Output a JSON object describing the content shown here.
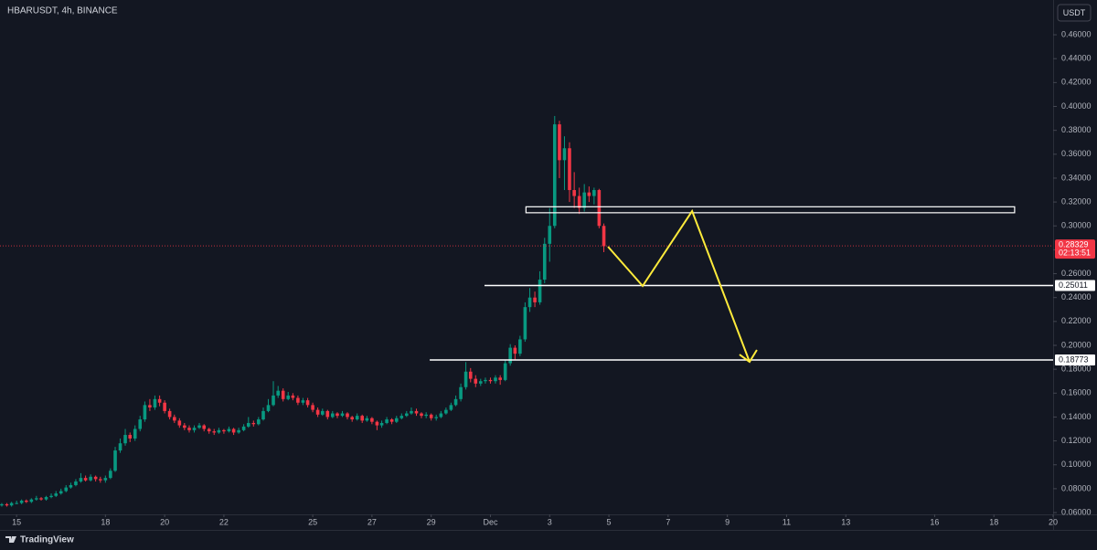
{
  "chart_data": {
    "type": "candlestick",
    "title": "HBARUSDT, 4h, BINANCE",
    "currency": "USDT",
    "up_color": "#089981",
    "down_color": "#f23645",
    "x": [
      -0.5,
      -0.33,
      -0.17,
      0,
      0.17,
      0.33,
      0.5,
      0.67,
      0.83,
      1,
      1.17,
      1.33,
      1.5,
      1.67,
      1.83,
      2,
      2.17,
      2.33,
      2.5,
      2.67,
      2.83,
      3,
      3.17,
      3.33,
      3.5,
      3.67,
      3.83,
      4,
      4.17,
      4.33,
      4.5,
      4.67,
      4.83,
      5,
      5.17,
      5.33,
      5.5,
      5.67,
      5.83,
      6,
      6.17,
      6.33,
      6.5,
      6.67,
      6.83,
      7,
      7.17,
      7.33,
      7.5,
      7.67,
      7.83,
      8,
      8.17,
      8.33,
      8.5,
      8.67,
      8.83,
      9,
      9.17,
      9.33,
      9.5,
      9.67,
      9.83,
      10,
      10.17,
      10.33,
      10.5,
      10.67,
      10.83,
      11,
      11.17,
      11.33,
      11.5,
      11.67,
      11.83,
      12,
      12.17,
      12.33,
      12.5,
      12.67,
      12.83,
      13,
      13.17,
      13.33,
      13.5,
      13.67,
      13.83,
      14,
      14.17,
      14.33,
      14.5,
      14.67,
      14.83,
      15,
      15.17,
      15.33,
      15.5,
      15.67,
      15.83,
      16,
      16.17,
      16.33,
      16.5,
      16.67,
      16.83,
      17,
      17.17,
      17.33,
      17.5,
      17.67,
      17.83,
      18,
      18.17,
      18.33,
      18.5,
      18.67,
      18.83,
      19,
      19.17,
      19.33,
      19.5,
      19.67,
      19.83
    ],
    "candles": [
      [
        0.066,
        0.068,
        0.065,
        0.067
      ],
      [
        0.067,
        0.068,
        0.065,
        0.066
      ],
      [
        0.066,
        0.069,
        0.065,
        0.068
      ],
      [
        0.068,
        0.07,
        0.067,
        0.068
      ],
      [
        0.068,
        0.071,
        0.067,
        0.07
      ],
      [
        0.07,
        0.071,
        0.068,
        0.069
      ],
      [
        0.069,
        0.072,
        0.068,
        0.071
      ],
      [
        0.071,
        0.074,
        0.07,
        0.072
      ],
      [
        0.072,
        0.073,
        0.07,
        0.071
      ],
      [
        0.071,
        0.074,
        0.07,
        0.073
      ],
      [
        0.073,
        0.076,
        0.072,
        0.074
      ],
      [
        0.074,
        0.078,
        0.073,
        0.076
      ],
      [
        0.076,
        0.08,
        0.075,
        0.078
      ],
      [
        0.078,
        0.083,
        0.077,
        0.081
      ],
      [
        0.081,
        0.085,
        0.08,
        0.083
      ],
      [
        0.083,
        0.088,
        0.082,
        0.086
      ],
      [
        0.086,
        0.093,
        0.085,
        0.089
      ],
      [
        0.089,
        0.091,
        0.086,
        0.087
      ],
      [
        0.087,
        0.092,
        0.086,
        0.09
      ],
      [
        0.09,
        0.091,
        0.086,
        0.088
      ],
      [
        0.088,
        0.09,
        0.085,
        0.087
      ],
      [
        0.087,
        0.091,
        0.085,
        0.089
      ],
      [
        0.089,
        0.097,
        0.088,
        0.095
      ],
      [
        0.095,
        0.115,
        0.094,
        0.112
      ],
      [
        0.112,
        0.122,
        0.11,
        0.118
      ],
      [
        0.118,
        0.13,
        0.116,
        0.125
      ],
      [
        0.125,
        0.127,
        0.119,
        0.122
      ],
      [
        0.122,
        0.133,
        0.12,
        0.13
      ],
      [
        0.13,
        0.141,
        0.128,
        0.138
      ],
      [
        0.138,
        0.153,
        0.136,
        0.15
      ],
      [
        0.15,
        0.155,
        0.145,
        0.148
      ],
      [
        0.148,
        0.158,
        0.146,
        0.155
      ],
      [
        0.155,
        0.158,
        0.149,
        0.152
      ],
      [
        0.152,
        0.154,
        0.143,
        0.145
      ],
      [
        0.145,
        0.147,
        0.138,
        0.14
      ],
      [
        0.14,
        0.142,
        0.135,
        0.137
      ],
      [
        0.137,
        0.139,
        0.131,
        0.133
      ],
      [
        0.133,
        0.135,
        0.129,
        0.131
      ],
      [
        0.131,
        0.133,
        0.127,
        0.129
      ],
      [
        0.129,
        0.133,
        0.127,
        0.131
      ],
      [
        0.131,
        0.135,
        0.13,
        0.133
      ],
      [
        0.133,
        0.134,
        0.128,
        0.13
      ],
      [
        0.13,
        0.131,
        0.126,
        0.128
      ],
      [
        0.128,
        0.13,
        0.125,
        0.127
      ],
      [
        0.127,
        0.131,
        0.126,
        0.129
      ],
      [
        0.129,
        0.13,
        0.126,
        0.128
      ],
      [
        0.128,
        0.132,
        0.127,
        0.13
      ],
      [
        0.13,
        0.131,
        0.125,
        0.127
      ],
      [
        0.127,
        0.131,
        0.126,
        0.129
      ],
      [
        0.129,
        0.134,
        0.128,
        0.132
      ],
      [
        0.132,
        0.14,
        0.131,
        0.135
      ],
      [
        0.135,
        0.137,
        0.132,
        0.134
      ],
      [
        0.134,
        0.14,
        0.133,
        0.138
      ],
      [
        0.138,
        0.148,
        0.137,
        0.145
      ],
      [
        0.145,
        0.155,
        0.144,
        0.15
      ],
      [
        0.15,
        0.17,
        0.149,
        0.158
      ],
      [
        0.158,
        0.166,
        0.156,
        0.162
      ],
      [
        0.162,
        0.164,
        0.153,
        0.155
      ],
      [
        0.155,
        0.161,
        0.154,
        0.158
      ],
      [
        0.158,
        0.16,
        0.154,
        0.156
      ],
      [
        0.156,
        0.158,
        0.15,
        0.152
      ],
      [
        0.152,
        0.156,
        0.15,
        0.154
      ],
      [
        0.154,
        0.156,
        0.148,
        0.15
      ],
      [
        0.15,
        0.152,
        0.144,
        0.146
      ],
      [
        0.146,
        0.148,
        0.14,
        0.142
      ],
      [
        0.142,
        0.147,
        0.141,
        0.145
      ],
      [
        0.145,
        0.146,
        0.138,
        0.14
      ],
      [
        0.14,
        0.145,
        0.139,
        0.143
      ],
      [
        0.143,
        0.144,
        0.139,
        0.141
      ],
      [
        0.141,
        0.145,
        0.14,
        0.143
      ],
      [
        0.143,
        0.144,
        0.138,
        0.14
      ],
      [
        0.14,
        0.141,
        0.136,
        0.138
      ],
      [
        0.138,
        0.143,
        0.137,
        0.141
      ],
      [
        0.141,
        0.142,
        0.135,
        0.137
      ],
      [
        0.137,
        0.141,
        0.136,
        0.139
      ],
      [
        0.139,
        0.14,
        0.134,
        0.136
      ],
      [
        0.136,
        0.137,
        0.129,
        0.133
      ],
      [
        0.133,
        0.137,
        0.131,
        0.135
      ],
      [
        0.135,
        0.14,
        0.134,
        0.138
      ],
      [
        0.138,
        0.139,
        0.134,
        0.136
      ],
      [
        0.136,
        0.141,
        0.135,
        0.139
      ],
      [
        0.139,
        0.143,
        0.138,
        0.141
      ],
      [
        0.141,
        0.145,
        0.14,
        0.143
      ],
      [
        0.143,
        0.148,
        0.142,
        0.145
      ],
      [
        0.145,
        0.147,
        0.141,
        0.143
      ],
      [
        0.143,
        0.144,
        0.139,
        0.141
      ],
      [
        0.141,
        0.144,
        0.139,
        0.142
      ],
      [
        0.142,
        0.143,
        0.137,
        0.139
      ],
      [
        0.139,
        0.142,
        0.137,
        0.14
      ],
      [
        0.14,
        0.145,
        0.139,
        0.143
      ],
      [
        0.143,
        0.148,
        0.142,
        0.146
      ],
      [
        0.146,
        0.152,
        0.145,
        0.15
      ],
      [
        0.15,
        0.158,
        0.149,
        0.155
      ],
      [
        0.155,
        0.168,
        0.153,
        0.165
      ],
      [
        0.165,
        0.186,
        0.163,
        0.178
      ],
      [
        0.178,
        0.181,
        0.169,
        0.172
      ],
      [
        0.172,
        0.175,
        0.165,
        0.168
      ],
      [
        0.168,
        0.172,
        0.166,
        0.17
      ],
      [
        0.17,
        0.173,
        0.168,
        0.171
      ],
      [
        0.171,
        0.173,
        0.168,
        0.17
      ],
      [
        0.17,
        0.175,
        0.168,
        0.173
      ],
      [
        0.173,
        0.175,
        0.167,
        0.171
      ],
      [
        0.171,
        0.188,
        0.17,
        0.185
      ],
      [
        0.185,
        0.201,
        0.183,
        0.198
      ],
      [
        0.198,
        0.2,
        0.188,
        0.193
      ],
      [
        0.193,
        0.208,
        0.191,
        0.205
      ],
      [
        0.205,
        0.236,
        0.203,
        0.232
      ],
      [
        0.232,
        0.248,
        0.228,
        0.24
      ],
      [
        0.24,
        0.245,
        0.232,
        0.236
      ],
      [
        0.236,
        0.262,
        0.234,
        0.255
      ],
      [
        0.255,
        0.29,
        0.252,
        0.285
      ],
      [
        0.285,
        0.315,
        0.27,
        0.3
      ],
      [
        0.3,
        0.392,
        0.298,
        0.385
      ],
      [
        0.385,
        0.388,
        0.34,
        0.355
      ],
      [
        0.355,
        0.375,
        0.33,
        0.365
      ],
      [
        0.365,
        0.37,
        0.32,
        0.33
      ],
      [
        0.33,
        0.345,
        0.315,
        0.325
      ],
      [
        0.325,
        0.332,
        0.31,
        0.315
      ],
      [
        0.315,
        0.335,
        0.312,
        0.328
      ],
      [
        0.328,
        0.333,
        0.32,
        0.325
      ],
      [
        0.325,
        0.332,
        0.318,
        0.33
      ],
      [
        0.33,
        0.331,
        0.298,
        0.3
      ],
      [
        0.3,
        0.302,
        0.278,
        0.283
      ]
    ],
    "xlim": [
      -0.56,
      35
    ],
    "xticks": [
      {
        "value": 0,
        "label": "15"
      },
      {
        "value": 3,
        "label": "18"
      },
      {
        "value": 5,
        "label": "20"
      },
      {
        "value": 7,
        "label": "22"
      },
      {
        "value": 10,
        "label": "25"
      },
      {
        "value": 12,
        "label": "27"
      },
      {
        "value": 14,
        "label": "29"
      },
      {
        "value": 16,
        "label": "Dec"
      },
      {
        "value": 18,
        "label": "3"
      },
      {
        "value": 20,
        "label": "5"
      },
      {
        "value": 22,
        "label": "7"
      },
      {
        "value": 24,
        "label": "9"
      },
      {
        "value": 26,
        "label": "11"
      },
      {
        "value": 28,
        "label": "13"
      },
      {
        "value": 31,
        "label": "16"
      },
      {
        "value": 33,
        "label": "18"
      },
      {
        "value": 35,
        "label": "20"
      }
    ],
    "ylim": [
      0.0585,
      0.4891
    ],
    "yticks": [
      {
        "value": 0.06,
        "label": "0.06000"
      },
      {
        "value": 0.08,
        "label": "0.08000"
      },
      {
        "value": 0.1,
        "label": "0.10000"
      },
      {
        "value": 0.12,
        "label": "0.12000"
      },
      {
        "value": 0.14,
        "label": "0.14000"
      },
      {
        "value": 0.16,
        "label": "0.16000"
      },
      {
        "value": 0.18,
        "label": "0.18000"
      },
      {
        "value": 0.2,
        "label": "0.20000"
      },
      {
        "value": 0.22,
        "label": "0.22000"
      },
      {
        "value": 0.24,
        "label": "0.24000"
      },
      {
        "value": 0.26,
        "label": "0.26000"
      },
      {
        "value": 0.28,
        "label": "0.28000"
      },
      {
        "value": 0.3,
        "label": "0.30000"
      },
      {
        "value": 0.32,
        "label": "0.32000"
      },
      {
        "value": 0.34,
        "label": "0.34000"
      },
      {
        "value": 0.36,
        "label": "0.36000"
      },
      {
        "value": 0.38,
        "label": "0.38000"
      },
      {
        "value": 0.4,
        "label": "0.40000"
      },
      {
        "value": 0.42,
        "label": "0.42000"
      },
      {
        "value": 0.44,
        "label": "0.44000"
      },
      {
        "value": 0.46,
        "label": "0.46000"
      }
    ],
    "last_price": 0.28329,
    "countdown": "02:13:51",
    "levels": [
      {
        "value": 0.25011,
        "x_start": 15.8
      },
      {
        "value": 0.18773,
        "x_start": 13.95
      }
    ],
    "zone": {
      "x": [
        17.2,
        33.7
      ],
      "y": [
        0.311,
        0.316
      ]
    },
    "projection": {
      "color": "#ffeb3b",
      "x": [
        19.97,
        21.14,
        22.81,
        24.75
      ],
      "y": [
        0.2826,
        0.2497,
        0.3124,
        0.1862
      ]
    }
  },
  "footer": {
    "brand": "TradingView"
  }
}
